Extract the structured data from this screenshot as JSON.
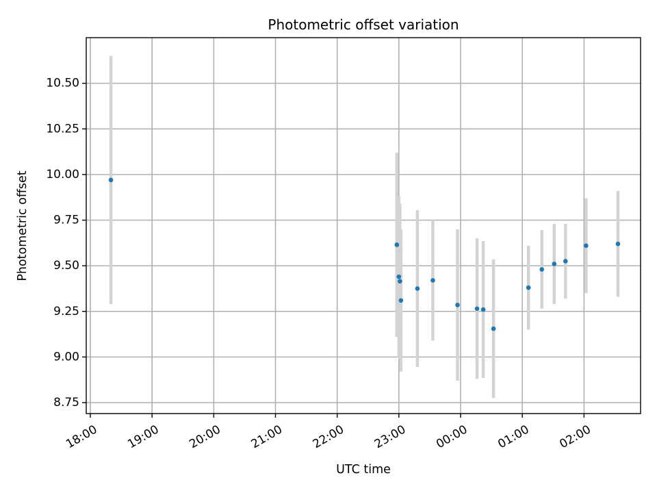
{
  "chart_data": {
    "type": "scatter",
    "title": "Photometric offset variation",
    "xlabel": "UTC time",
    "ylabel": "Photometric offset",
    "grid": true,
    "colors": {
      "marker": "#1f77b4",
      "errorbar": "#d3d3d3"
    },
    "xlim": [
      "17:56",
      "26:55"
    ],
    "ylim": [
      8.69,
      10.75
    ],
    "x_ticks": [
      "18:00",
      "19:00",
      "20:00",
      "21:00",
      "22:00",
      "23:00",
      "00:00",
      "01:00",
      "02:00"
    ],
    "y_ticks": [
      "8.75",
      "9.00",
      "9.25",
      "9.50",
      "9.75",
      "10.00",
      "10.25",
      "10.50"
    ],
    "points": [
      {
        "x": "18:20",
        "y": 9.97,
        "yerr": 0.68
      },
      {
        "x": "22:58",
        "y": 9.615,
        "yerr": 0.505
      },
      {
        "x": "23:00",
        "y": 9.44,
        "yerr": 0.44
      },
      {
        "x": "23:01",
        "y": 9.415,
        "yerr": 0.425
      },
      {
        "x": "23:02",
        "y": 9.31,
        "yerr": 0.39
      },
      {
        "x": "23:18",
        "y": 9.375,
        "yerr": 0.43
      },
      {
        "x": "23:33",
        "y": 9.42,
        "yerr": 0.33
      },
      {
        "x": "23:57",
        "y": 9.285,
        "yerr": 0.415
      },
      {
        "x": "00:16",
        "y": 9.265,
        "yerr": 0.385
      },
      {
        "x": "00:22",
        "y": 9.26,
        "yerr": 0.375
      },
      {
        "x": "00:32",
        "y": 9.155,
        "yerr": 0.38
      },
      {
        "x": "01:06",
        "y": 9.38,
        "yerr": 0.23
      },
      {
        "x": "01:19",
        "y": 9.48,
        "yerr": 0.215
      },
      {
        "x": "01:31",
        "y": 9.51,
        "yerr": 0.22
      },
      {
        "x": "01:42",
        "y": 9.525,
        "yerr": 0.205
      },
      {
        "x": "02:02",
        "y": 9.61,
        "yerr": 0.26
      },
      {
        "x": "02:33",
        "y": 9.62,
        "yerr": 0.29
      }
    ]
  }
}
